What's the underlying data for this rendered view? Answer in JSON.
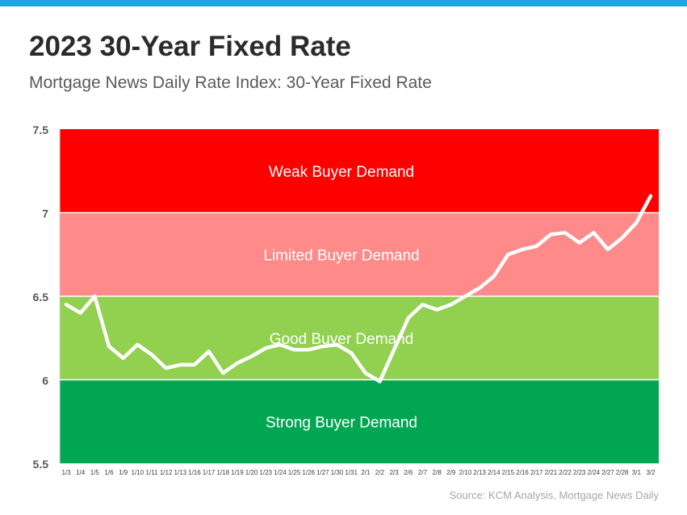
{
  "header": {
    "title": "2023 30-Year Fixed Rate",
    "subtitle": "Mortgage News Daily Rate Index: 30-Year Fixed Rate"
  },
  "source": "Source: KCM Analysis, Mortgage News Daily",
  "colors": {
    "top_bar": "#1ea4e3",
    "line": "#ffffff"
  },
  "chart_data": {
    "type": "line",
    "title": "2023 30-Year Fixed Rate",
    "subtitle": "Mortgage News Daily Rate Index: 30-Year Fixed Rate",
    "xlabel": "",
    "ylabel": "",
    "ylim": [
      5.5,
      7.5
    ],
    "yticks": [
      "5.5",
      "6",
      "6.5",
      "7",
      "7.5"
    ],
    "grid": false,
    "bands": [
      {
        "label": "Strong Buyer Demand",
        "from": 5.5,
        "to": 6.0,
        "color": "#00a651"
      },
      {
        "label": "Good Buyer Demand",
        "from": 6.0,
        "to": 6.5,
        "color": "#92d050"
      },
      {
        "label": "Limited Buyer Demand",
        "from": 6.5,
        "to": 7.0,
        "color": "#ff8a8a"
      },
      {
        "label": "Weak Buyer Demand",
        "from": 7.0,
        "to": 7.5,
        "color": "#ff0000"
      }
    ],
    "categories": [
      "1/3",
      "1/4",
      "1/5",
      "1/6",
      "1/9",
      "1/10",
      "1/11",
      "1/12",
      "1/13",
      "1/16",
      "1/17",
      "1/18",
      "1/19",
      "1/20",
      "1/23",
      "1/24",
      "1/25",
      "1/26",
      "1/27",
      "1/30",
      "1/31",
      "2/1",
      "2/2",
      "2/3",
      "2/6",
      "2/7",
      "2/8",
      "2/9",
      "2/10",
      "2/13",
      "2/14",
      "2/15",
      "2/16",
      "2/17",
      "2/21",
      "2/22",
      "2/23",
      "2/24",
      "2/27",
      "2/28",
      "3/1",
      "3/2"
    ],
    "series": [
      {
        "values": [
          6.45,
          6.4,
          6.5,
          6.2,
          6.13,
          6.21,
          6.15,
          6.07,
          6.09,
          6.09,
          6.17,
          6.04,
          6.1,
          6.14,
          6.19,
          6.21,
          6.18,
          6.18,
          6.2,
          6.21,
          6.16,
          6.04,
          5.99,
          6.18,
          6.37,
          6.45,
          6.42,
          6.45,
          6.5,
          6.55,
          6.62,
          6.75,
          6.78,
          6.8,
          6.87,
          6.88,
          6.82,
          6.88,
          6.78,
          6.85,
          6.94,
          7.1
        ]
      }
    ]
  }
}
